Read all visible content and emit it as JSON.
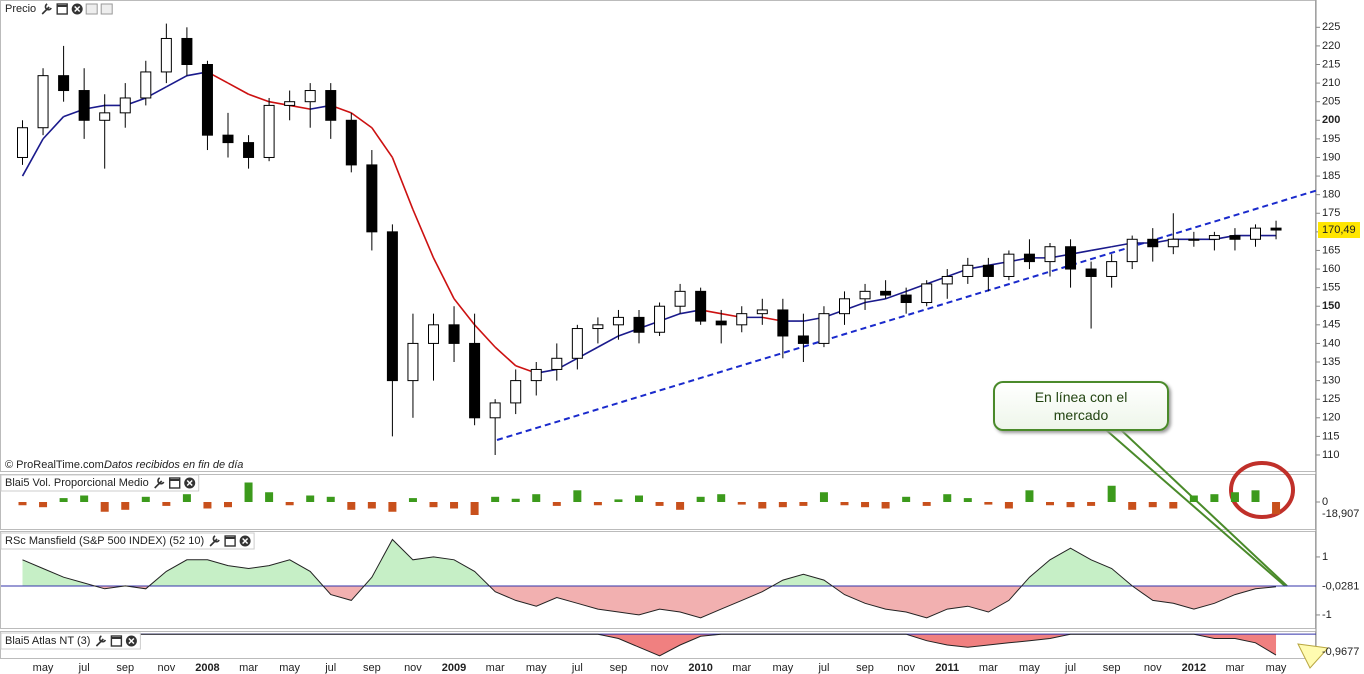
{
  "chart_data": [
    {
      "type": "candlestick",
      "title": "Precio",
      "source": "© ProRealTime.com",
      "note": "Datos recibidos en fin de día",
      "categories": [
        null,
        "may",
        null,
        "jul",
        null,
        "sep",
        null,
        "nov",
        null,
        "2008",
        null,
        "mar",
        null,
        "may",
        null,
        "jul",
        null,
        "sep",
        null,
        "nov",
        null,
        "2009",
        null,
        "mar",
        null,
        "may",
        null,
        "jul",
        null,
        "sep",
        null,
        "nov",
        null,
        "2010",
        null,
        "mar",
        null,
        "may",
        null,
        "jul",
        null,
        "sep",
        null,
        "nov",
        null,
        "2011",
        null,
        "mar",
        null,
        "may",
        null,
        "jul",
        null,
        "sep",
        null,
        "nov",
        null,
        "2012",
        null,
        "mar",
        null,
        "may"
      ],
      "open": [
        190,
        198,
        212,
        208,
        200,
        202,
        206,
        213,
        222,
        215,
        196,
        194,
        190,
        204,
        205,
        208,
        200,
        188,
        170,
        130,
        140,
        145,
        140,
        120,
        124,
        130,
        133,
        136,
        144,
        145,
        147,
        143,
        150,
        154,
        146,
        145,
        148,
        149,
        142,
        140,
        148,
        152,
        154,
        153,
        151,
        156,
        158,
        161,
        158,
        164,
        162,
        166,
        160,
        158,
        162,
        168,
        166,
        168,
        168,
        169,
        168,
        171
      ],
      "high": [
        200,
        214,
        220,
        214,
        207,
        210,
        216,
        226,
        225,
        216,
        202,
        196,
        206,
        208,
        210,
        210,
        202,
        192,
        172,
        148,
        148,
        150,
        148,
        125,
        133,
        135,
        140,
        145,
        147,
        149,
        149,
        151,
        156,
        155,
        149,
        150,
        152,
        152,
        148,
        150,
        154,
        156,
        157,
        155,
        157,
        160,
        163,
        163,
        165,
        168,
        167,
        168,
        162,
        164,
        169,
        171,
        175,
        170,
        170,
        171,
        172,
        173
      ],
      "low": [
        188,
        196,
        205,
        195,
        187,
        198,
        204,
        210,
        212,
        192,
        190,
        187,
        189,
        200,
        198,
        195,
        186,
        165,
        115,
        120,
        130,
        135,
        118,
        110,
        121,
        126,
        130,
        133,
        140,
        141,
        140,
        142,
        148,
        145,
        140,
        143,
        145,
        136,
        135,
        139,
        145,
        149,
        152,
        148,
        150,
        152,
        156,
        154,
        157,
        160,
        158,
        155,
        144,
        155,
        160,
        162,
        164,
        166,
        165,
        165,
        166,
        168
      ],
      "close": [
        198,
        212,
        208,
        200,
        202,
        206,
        213,
        222,
        215,
        196,
        194,
        190,
        204,
        205,
        208,
        200,
        188,
        170,
        130,
        140,
        145,
        140,
        120,
        124,
        130,
        133,
        136,
        144,
        145,
        147,
        143,
        150,
        154,
        146,
        145,
        148,
        149,
        142,
        140,
        148,
        152,
        154,
        153,
        151,
        156,
        158,
        161,
        158,
        164,
        162,
        166,
        160,
        158,
        162,
        168,
        166,
        168,
        168,
        169,
        168,
        171,
        170.49
      ],
      "moving_average": {
        "values": [
          185,
          195,
          201,
          203,
          204,
          204,
          206,
          209,
          212,
          213,
          210,
          207,
          205,
          204,
          203,
          204,
          202,
          198,
          190,
          176,
          163,
          152,
          145,
          139,
          134,
          132,
          133,
          136,
          139,
          142,
          144,
          146,
          148,
          149,
          148,
          147,
          147,
          146,
          146,
          147,
          149,
          151,
          152,
          154,
          156,
          158,
          160,
          161,
          162,
          163,
          163,
          164,
          165,
          166,
          167,
          167,
          168,
          168,
          168,
          169,
          169,
          169
        ],
        "rising_color": "#1a1a8c",
        "falling_color": "#cc1111"
      },
      "up_color": "#ffffff",
      "down_color": "#000000",
      "ylim": [
        106.5,
        231
      ],
      "yticks": [
        110,
        115,
        120,
        125,
        130,
        135,
        140,
        145,
        150,
        155,
        160,
        165,
        170,
        175,
        180,
        185,
        190,
        195,
        200,
        205,
        210,
        215,
        220,
        225
      ],
      "major_step": 50,
      "last_price": {
        "value": 170.49,
        "label": "170,49"
      },
      "annotation": "En línea con el mercado"
    },
    {
      "type": "bar",
      "title": "Blai5 Vol. Proporcional Medio",
      "values": [
        -5,
        -8,
        6,
        10,
        -15,
        -12,
        8,
        -6,
        12,
        -10,
        -8,
        30,
        15,
        -5,
        10,
        8,
        -12,
        -10,
        -15,
        6,
        -8,
        -10,
        -20,
        8,
        5,
        12,
        -6,
        18,
        -5,
        4,
        10,
        -6,
        -12,
        8,
        12,
        -4,
        -10,
        -8,
        -6,
        15,
        -5,
        -8,
        -10,
        8,
        -6,
        12,
        6,
        -4,
        -10,
        18,
        -5,
        -8,
        -6,
        25,
        -12,
        -8,
        -10,
        10,
        12,
        15,
        18,
        -18.907
      ],
      "positive_color": "#3c9a1c",
      "negative_color": "#c8501c",
      "ylim": [
        -40,
        40
      ],
      "yticks": [
        0
      ],
      "last_value": {
        "value": -18.907,
        "label": "-18,907"
      }
    },
    {
      "type": "area",
      "title": "RSc Mansfield (S&P 500 INDEX) (52 10)",
      "values": [
        0.9,
        0.6,
        0.3,
        0.1,
        -0.1,
        0.0,
        -0.1,
        0.5,
        0.9,
        0.9,
        0.7,
        0.6,
        0.7,
        0.9,
        0.5,
        -0.3,
        -0.5,
        0.3,
        1.6,
        0.9,
        1.0,
        0.9,
        0.5,
        -0.2,
        -0.5,
        -0.7,
        -0.4,
        -0.6,
        -0.8,
        -0.9,
        -1.0,
        -0.8,
        -0.9,
        -1.1,
        -0.8,
        -0.5,
        -0.2,
        0.2,
        0.4,
        0.2,
        -0.3,
        -0.6,
        -0.8,
        -0.9,
        -1.1,
        -0.8,
        -0.7,
        -0.9,
        -0.5,
        0.3,
        0.9,
        1.3,
        0.9,
        0.6,
        0.0,
        -0.5,
        -0.6,
        -0.8,
        -0.6,
        -0.3,
        -0.1,
        -0.0281
      ],
      "positive_color": "#c6efc6",
      "negative_color": "#f2b0b0",
      "baseline_color": "#3333aa",
      "ylim": [
        -1.45,
        1.86
      ],
      "yticks": [
        1,
        -1
      ],
      "last_value": {
        "value": -0.0281,
        "label": "-0,0281"
      }
    },
    {
      "type": "area",
      "title": "Blai5 Atlas NT (3)",
      "values": [
        0,
        0,
        0,
        0,
        0,
        0,
        0,
        0,
        0,
        0,
        0,
        0,
        0,
        0,
        0,
        0,
        0,
        0,
        0,
        0,
        0,
        0,
        0,
        0,
        0,
        0,
        0,
        0,
        0,
        -0.2,
        -0.6,
        -1.0,
        -0.5,
        -0.1,
        0,
        0,
        0,
        0,
        0,
        0,
        0,
        0,
        0,
        0,
        -0.3,
        -0.5,
        -0.6,
        -0.5,
        -0.4,
        -0.3,
        -0.2,
        0,
        0,
        0,
        0,
        0,
        0,
        0,
        -0.2,
        -0.2,
        -0.4,
        -0.9677
      ],
      "negative_color": "#f08080",
      "baseline_color": "#3333aa",
      "ylim": [
        -1.1,
        0.1
      ],
      "yticks": [],
      "last_value": {
        "value": -0.9677,
        "label": "-0,9677"
      }
    }
  ]
}
